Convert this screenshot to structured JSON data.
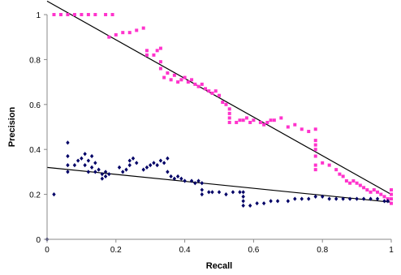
{
  "chart_data": {
    "type": "scatter",
    "xlabel": "Recall",
    "ylabel": "Precision",
    "xlim": [
      0,
      1
    ],
    "ylim": [
      0,
      1
    ],
    "x_ticks": [
      "0",
      "0.2",
      "0.4",
      "0.6",
      "0.8",
      "1"
    ],
    "y_ticks": [
      "0",
      "0.2",
      "0.4",
      "0.6",
      "0.8",
      "1"
    ],
    "grid": false,
    "legend": "none",
    "series": [
      {
        "marker": "square",
        "color": "#ff33cc",
        "points": [
          [
            0.02,
            1.0
          ],
          [
            0.04,
            1.0
          ],
          [
            0.06,
            1.0
          ],
          [
            0.08,
            1.0
          ],
          [
            0.1,
            1.0
          ],
          [
            0.12,
            1.0
          ],
          [
            0.14,
            1.0
          ],
          [
            0.17,
            1.0
          ],
          [
            0.19,
            1.0
          ],
          [
            0.18,
            0.9
          ],
          [
            0.2,
            0.91
          ],
          [
            0.22,
            0.92
          ],
          [
            0.24,
            0.92
          ],
          [
            0.26,
            0.93
          ],
          [
            0.28,
            0.94
          ],
          [
            0.29,
            0.84
          ],
          [
            0.29,
            0.82
          ],
          [
            0.31,
            0.82
          ],
          [
            0.32,
            0.84
          ],
          [
            0.33,
            0.85
          ],
          [
            0.33,
            0.79
          ],
          [
            0.33,
            0.76
          ],
          [
            0.34,
            0.72
          ],
          [
            0.35,
            0.74
          ],
          [
            0.36,
            0.71
          ],
          [
            0.37,
            0.73
          ],
          [
            0.38,
            0.7
          ],
          [
            0.39,
            0.71
          ],
          [
            0.4,
            0.72
          ],
          [
            0.41,
            0.7
          ],
          [
            0.42,
            0.71
          ],
          [
            0.43,
            0.69
          ],
          [
            0.44,
            0.68
          ],
          [
            0.45,
            0.69
          ],
          [
            0.46,
            0.67
          ],
          [
            0.47,
            0.66
          ],
          [
            0.48,
            0.65
          ],
          [
            0.49,
            0.66
          ],
          [
            0.5,
            0.64
          ],
          [
            0.51,
            0.61
          ],
          [
            0.52,
            0.6
          ],
          [
            0.53,
            0.58
          ],
          [
            0.53,
            0.56
          ],
          [
            0.53,
            0.54
          ],
          [
            0.53,
            0.52
          ],
          [
            0.55,
            0.52
          ],
          [
            0.56,
            0.53
          ],
          [
            0.57,
            0.53
          ],
          [
            0.58,
            0.54
          ],
          [
            0.59,
            0.52
          ],
          [
            0.6,
            0.53
          ],
          [
            0.62,
            0.52
          ],
          [
            0.63,
            0.51
          ],
          [
            0.64,
            0.52
          ],
          [
            0.65,
            0.53
          ],
          [
            0.66,
            0.53
          ],
          [
            0.68,
            0.54
          ],
          [
            0.7,
            0.5
          ],
          [
            0.72,
            0.51
          ],
          [
            0.74,
            0.49
          ],
          [
            0.76,
            0.48
          ],
          [
            0.78,
            0.49
          ],
          [
            0.78,
            0.44
          ],
          [
            0.78,
            0.42
          ],
          [
            0.78,
            0.4
          ],
          [
            0.78,
            0.37
          ],
          [
            0.78,
            0.33
          ],
          [
            0.78,
            0.31
          ],
          [
            0.8,
            0.34
          ],
          [
            0.82,
            0.33
          ],
          [
            0.84,
            0.31
          ],
          [
            0.85,
            0.29
          ],
          [
            0.86,
            0.28
          ],
          [
            0.87,
            0.26
          ],
          [
            0.88,
            0.25
          ],
          [
            0.89,
            0.26
          ],
          [
            0.9,
            0.25
          ],
          [
            0.91,
            0.24
          ],
          [
            0.92,
            0.23
          ],
          [
            0.93,
            0.22
          ],
          [
            0.94,
            0.21
          ],
          [
            0.95,
            0.22
          ],
          [
            0.96,
            0.21
          ],
          [
            0.97,
            0.2
          ],
          [
            0.98,
            0.19
          ],
          [
            0.99,
            0.18
          ],
          [
            1.0,
            0.16
          ],
          [
            1.0,
            0.18
          ],
          [
            1.0,
            0.2
          ],
          [
            1.0,
            0.22
          ]
        ]
      },
      {
        "marker": "diamond",
        "color": "#000066",
        "points": [
          [
            0.0,
            0.0
          ],
          [
            0.02,
            0.2
          ],
          [
            0.06,
            0.43
          ],
          [
            0.06,
            0.37
          ],
          [
            0.06,
            0.33
          ],
          [
            0.06,
            0.3
          ],
          [
            0.08,
            0.33
          ],
          [
            0.09,
            0.35
          ],
          [
            0.1,
            0.36
          ],
          [
            0.11,
            0.38
          ],
          [
            0.11,
            0.33
          ],
          [
            0.12,
            0.35
          ],
          [
            0.12,
            0.3
          ],
          [
            0.13,
            0.32
          ],
          [
            0.13,
            0.37
          ],
          [
            0.14,
            0.34
          ],
          [
            0.14,
            0.3
          ],
          [
            0.15,
            0.31
          ],
          [
            0.16,
            0.29
          ],
          [
            0.16,
            0.27
          ],
          [
            0.17,
            0.3
          ],
          [
            0.17,
            0.28
          ],
          [
            0.18,
            0.29
          ],
          [
            0.21,
            0.32
          ],
          [
            0.22,
            0.3
          ],
          [
            0.23,
            0.31
          ],
          [
            0.24,
            0.33
          ],
          [
            0.24,
            0.35
          ],
          [
            0.25,
            0.36
          ],
          [
            0.26,
            0.34
          ],
          [
            0.28,
            0.31
          ],
          [
            0.29,
            0.32
          ],
          [
            0.3,
            0.33
          ],
          [
            0.31,
            0.34
          ],
          [
            0.32,
            0.33
          ],
          [
            0.33,
            0.35
          ],
          [
            0.34,
            0.34
          ],
          [
            0.35,
            0.36
          ],
          [
            0.35,
            0.3
          ],
          [
            0.36,
            0.28
          ],
          [
            0.37,
            0.27
          ],
          [
            0.38,
            0.28
          ],
          [
            0.39,
            0.27
          ],
          [
            0.4,
            0.26
          ],
          [
            0.42,
            0.26
          ],
          [
            0.43,
            0.25
          ],
          [
            0.44,
            0.26
          ],
          [
            0.45,
            0.25
          ],
          [
            0.45,
            0.22
          ],
          [
            0.45,
            0.2
          ],
          [
            0.47,
            0.21
          ],
          [
            0.48,
            0.21
          ],
          [
            0.5,
            0.21
          ],
          [
            0.52,
            0.2
          ],
          [
            0.54,
            0.21
          ],
          [
            0.56,
            0.21
          ],
          [
            0.57,
            0.21
          ],
          [
            0.57,
            0.19
          ],
          [
            0.57,
            0.17
          ],
          [
            0.57,
            0.15
          ],
          [
            0.59,
            0.15
          ],
          [
            0.61,
            0.16
          ],
          [
            0.63,
            0.16
          ],
          [
            0.65,
            0.17
          ],
          [
            0.67,
            0.17
          ],
          [
            0.7,
            0.17
          ],
          [
            0.72,
            0.18
          ],
          [
            0.74,
            0.18
          ],
          [
            0.76,
            0.18
          ],
          [
            0.78,
            0.19
          ],
          [
            0.8,
            0.19
          ],
          [
            0.82,
            0.18
          ],
          [
            0.84,
            0.18
          ],
          [
            0.86,
            0.18
          ],
          [
            0.88,
            0.18
          ],
          [
            0.9,
            0.18
          ],
          [
            0.92,
            0.18
          ],
          [
            0.94,
            0.18
          ],
          [
            0.96,
            0.18
          ],
          [
            0.98,
            0.17
          ],
          [
            0.99,
            0.17
          ]
        ]
      }
    ],
    "trendlines": [
      {
        "color": "#000000",
        "from": [
          0.0,
          1.06
        ],
        "to": [
          1.0,
          0.2
        ]
      },
      {
        "color": "#000000",
        "from": [
          0.0,
          0.32
        ],
        "to": [
          1.0,
          0.165
        ]
      }
    ]
  }
}
